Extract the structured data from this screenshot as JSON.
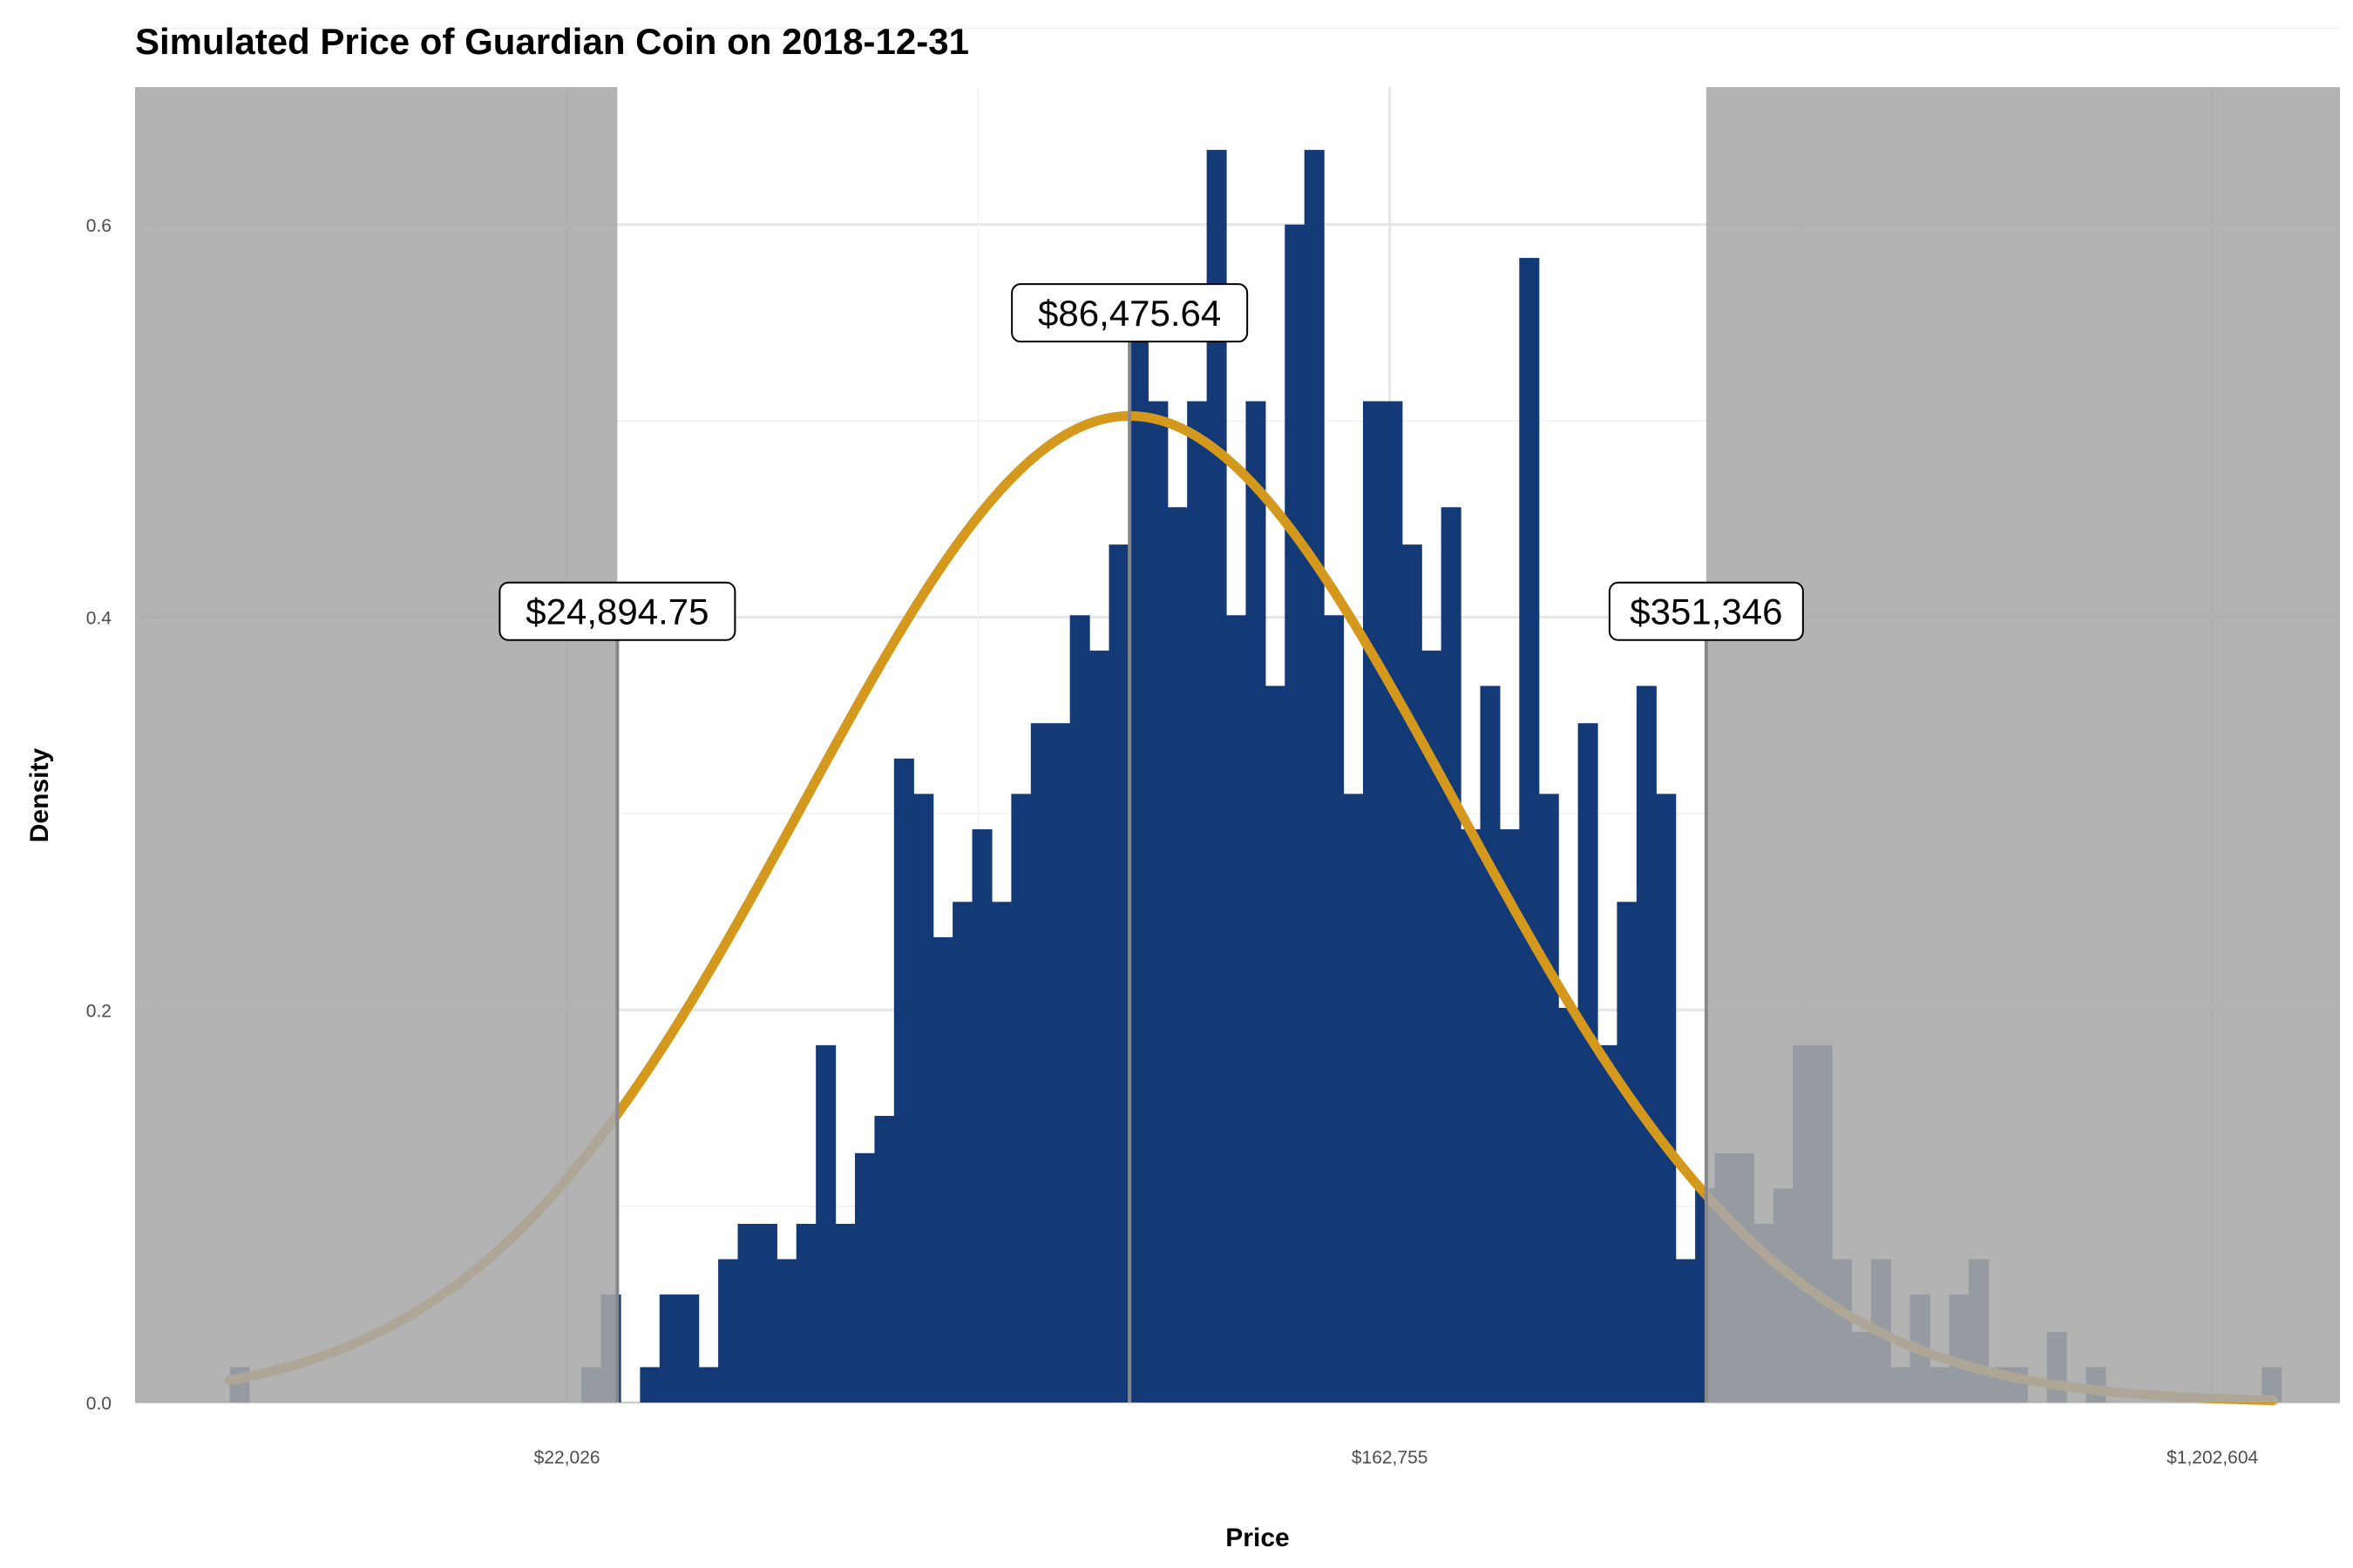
{
  "chart_data": {
    "type": "histogram",
    "title": "Simulated Price of Guardian Coin on 2018-12-31",
    "xlabel": "Price",
    "ylabel": "Density",
    "x_scale": "log",
    "x_ticks": [
      {
        "value": 22026,
        "label": "$22,026"
      },
      {
        "value": 162755,
        "label": "$162,755"
      },
      {
        "value": 1202604,
        "label": "$1,202,604"
      }
    ],
    "y_ticks": [
      {
        "value": 0.0,
        "label": "0.0"
      },
      {
        "value": 0.2,
        "label": "0.2"
      },
      {
        "value": 0.4,
        "label": "0.4"
      },
      {
        "value": 0.6,
        "label": "0.6"
      }
    ],
    "ylim": [
      0,
      0.67
    ],
    "grid": true,
    "log_x_range": [
      8.95,
      14.31
    ],
    "bar_color": "#133a76",
    "curve_color": "#d4991c",
    "shade_color": "#a8a8a8",
    "bins_log_price_start": 9.18,
    "bins_log_price_width": 0.0475,
    "bin_density": [
      0.018,
      0,
      0,
      0,
      0,
      0,
      0,
      0,
      0,
      0,
      0,
      0,
      0,
      0,
      0,
      0,
      0,
      0,
      0.018,
      0.055,
      0,
      0.018,
      0.055,
      0.055,
      0.018,
      0.073,
      0.091,
      0.091,
      0.073,
      0.091,
      0.182,
      0.091,
      0.127,
      0.146,
      0.328,
      0.31,
      0.237,
      0.255,
      0.292,
      0.255,
      0.31,
      0.346,
      0.346,
      0.401,
      0.383,
      0.437,
      0.565,
      0.51,
      0.456,
      0.51,
      0.638,
      0.401,
      0.51,
      0.365,
      0.6,
      0.638,
      0.401,
      0.31,
      0.51,
      0.51,
      0.437,
      0.383,
      0.456,
      0.292,
      0.365,
      0.292,
      0.583,
      0.31,
      0.201,
      0.346,
      0.182,
      0.255,
      0.365,
      0.31,
      0.073,
      0.109,
      0.127,
      0.127,
      0.091,
      0.109,
      0.182,
      0.182,
      0.073,
      0.036,
      0.073,
      0.018,
      0.055,
      0.018,
      0.055,
      0.073,
      0.018,
      0.018,
      0,
      0.036,
      0,
      0.018,
      0,
      0,
      0,
      0,
      0,
      0,
      0,
      0,
      0.018
    ],
    "normal_fit": {
      "mean_log": 11.3676,
      "sd_log": 0.7939
    },
    "annotations": [
      {
        "value": 24894.75,
        "label": "$24,894.75",
        "role": "lower"
      },
      {
        "value": 86475.64,
        "label": "$86,475.64",
        "role": "median"
      },
      {
        "value": 351346,
        "label": "$351,346",
        "role": "upper"
      }
    ]
  }
}
